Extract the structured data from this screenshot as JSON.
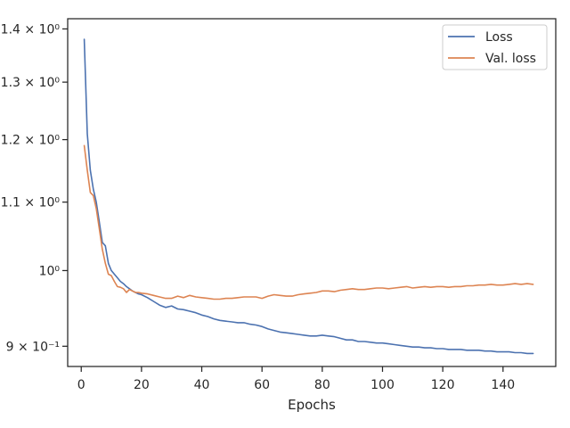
{
  "chart_data": {
    "type": "line",
    "title": "",
    "xlabel": "Epochs",
    "ylabel": "",
    "yscale": "log",
    "xlim": [
      -4.5,
      157.5
    ],
    "ylim": [
      0.875,
      1.42
    ],
    "grid": false,
    "legend_position": "top-right",
    "x_ticks": [
      0,
      20,
      40,
      60,
      80,
      100,
      120,
      140
    ],
    "x_tick_labels": [
      "0",
      "20",
      "40",
      "60",
      "80",
      "100",
      "120",
      "140"
    ],
    "y_ticks": [
      0.9,
      1.0,
      1.1,
      1.2,
      1.3,
      1.4
    ],
    "y_tick_labels": [
      "9 × 10⁻¹",
      "10⁰",
      "1.1 × 10⁰",
      "1.2 × 10⁰",
      "1.3 × 10⁰",
      "1.4 × 10⁰"
    ],
    "series": [
      {
        "name": "Loss",
        "color": "#4c72b0",
        "x": [
          1,
          2,
          3,
          4,
          5,
          6,
          7,
          8,
          9,
          10,
          11,
          12,
          13,
          14,
          15,
          16,
          17,
          18,
          19,
          20,
          22,
          24,
          26,
          28,
          30,
          32,
          34,
          36,
          38,
          40,
          42,
          44,
          46,
          48,
          50,
          52,
          54,
          56,
          58,
          60,
          62,
          64,
          66,
          68,
          70,
          72,
          74,
          76,
          78,
          80,
          82,
          84,
          86,
          88,
          90,
          92,
          94,
          96,
          98,
          100,
          102,
          104,
          106,
          108,
          110,
          112,
          114,
          116,
          118,
          120,
          122,
          124,
          126,
          128,
          130,
          132,
          134,
          136,
          138,
          140,
          142,
          144,
          146,
          148,
          150
        ],
        "values": [
          1.38,
          1.21,
          1.15,
          1.12,
          1.1,
          1.07,
          1.04,
          1.035,
          1.01,
          1.0,
          0.995,
          0.99,
          0.985,
          0.982,
          0.978,
          0.975,
          0.972,
          0.97,
          0.968,
          0.967,
          0.963,
          0.958,
          0.953,
          0.95,
          0.952,
          0.948,
          0.947,
          0.945,
          0.943,
          0.94,
          0.938,
          0.935,
          0.933,
          0.932,
          0.931,
          0.93,
          0.93,
          0.928,
          0.927,
          0.925,
          0.922,
          0.92,
          0.918,
          0.917,
          0.916,
          0.915,
          0.914,
          0.913,
          0.913,
          0.914,
          0.913,
          0.912,
          0.91,
          0.908,
          0.908,
          0.906,
          0.906,
          0.905,
          0.904,
          0.904,
          0.903,
          0.902,
          0.901,
          0.9,
          0.899,
          0.899,
          0.898,
          0.898,
          0.897,
          0.897,
          0.896,
          0.896,
          0.896,
          0.895,
          0.895,
          0.895,
          0.894,
          0.894,
          0.893,
          0.893,
          0.893,
          0.892,
          0.892,
          0.891,
          0.891
        ]
      },
      {
        "name": "Val. loss",
        "color": "#dd8452",
        "x": [
          1,
          2,
          3,
          4,
          5,
          6,
          7,
          8,
          9,
          10,
          11,
          12,
          13,
          14,
          15,
          16,
          17,
          18,
          19,
          20,
          22,
          24,
          26,
          28,
          30,
          32,
          34,
          36,
          38,
          40,
          42,
          44,
          46,
          48,
          50,
          52,
          54,
          56,
          58,
          60,
          62,
          64,
          66,
          68,
          70,
          72,
          74,
          76,
          78,
          80,
          82,
          84,
          86,
          88,
          90,
          92,
          94,
          96,
          98,
          100,
          102,
          104,
          106,
          108,
          110,
          112,
          114,
          116,
          118,
          120,
          122,
          124,
          126,
          128,
          130,
          132,
          134,
          136,
          138,
          140,
          142,
          144,
          146,
          148,
          150
        ],
        "values": [
          1.19,
          1.15,
          1.115,
          1.11,
          1.09,
          1.06,
          1.03,
          1.01,
          0.995,
          0.993,
          0.985,
          0.978,
          0.977,
          0.975,
          0.97,
          0.974,
          0.972,
          0.97,
          0.97,
          0.969,
          0.968,
          0.966,
          0.964,
          0.962,
          0.962,
          0.965,
          0.963,
          0.966,
          0.964,
          0.963,
          0.962,
          0.961,
          0.961,
          0.962,
          0.962,
          0.963,
          0.964,
          0.964,
          0.964,
          0.962,
          0.965,
          0.967,
          0.966,
          0.965,
          0.965,
          0.967,
          0.968,
          0.969,
          0.97,
          0.972,
          0.972,
          0.971,
          0.973,
          0.974,
          0.975,
          0.974,
          0.974,
          0.975,
          0.976,
          0.976,
          0.975,
          0.976,
          0.977,
          0.978,
          0.976,
          0.977,
          0.978,
          0.977,
          0.978,
          0.978,
          0.977,
          0.978,
          0.978,
          0.979,
          0.979,
          0.98,
          0.98,
          0.981,
          0.98,
          0.98,
          0.981,
          0.982,
          0.981,
          0.982,
          0.981
        ]
      }
    ]
  }
}
